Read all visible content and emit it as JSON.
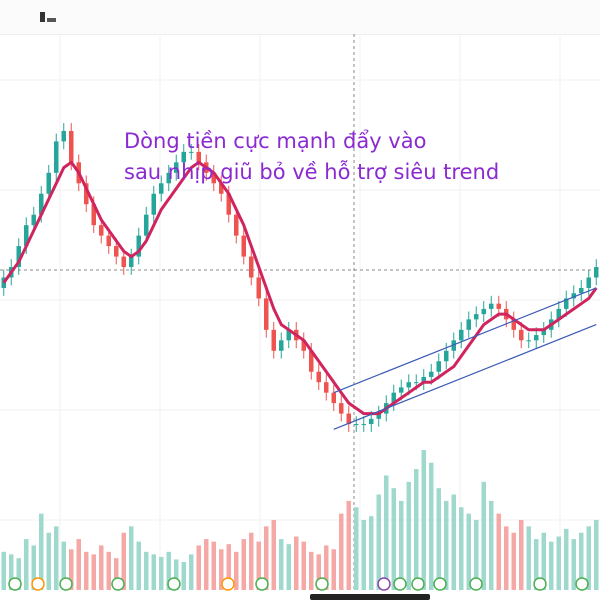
{
  "annotation": {
    "line1": "Dòng tiền cực mạnh đẩy vào",
    "line2": "sau nhịp giũ bỏ về hỗ trợ siêu trend"
  },
  "colors": {
    "up_candle": "#26a69a",
    "down_candle": "#ef5350",
    "up_volume": "#9fd8cd",
    "down_volume": "#f4a9a7",
    "moving_average": "#d0245e",
    "channel": "#3b5bb5",
    "annotation_text": "#8b2ad1",
    "event_marker": "#4caf50",
    "event_marker_alt": "#ff9800",
    "event_marker_div": "#8e44ad"
  },
  "icons": [
    "topbar-menu-icon"
  ],
  "chart_data": {
    "type": "candlestick",
    "grid": true,
    "candles": {
      "open": [
        60,
        62,
        64,
        68,
        72,
        74,
        78,
        82,
        88,
        90,
        84,
        80,
        76,
        72,
        70,
        68,
        66,
        64,
        66,
        70,
        74,
        78,
        80,
        82,
        84,
        86,
        86,
        84,
        82,
        80,
        78,
        74,
        70,
        66,
        62,
        58,
        52,
        48,
        50,
        52,
        50,
        48,
        44,
        42,
        40,
        38,
        36,
        34,
        34,
        34,
        35,
        36,
        38,
        40,
        41,
        42,
        42,
        43,
        44,
        46,
        48,
        50,
        52,
        54,
        55,
        56,
        57,
        56,
        54,
        52,
        50,
        50,
        51,
        52,
        54,
        56,
        58,
        59,
        60,
        62
      ],
      "close": [
        62,
        64,
        68,
        72,
        74,
        78,
        82,
        88,
        90,
        84,
        80,
        76,
        72,
        70,
        68,
        66,
        64,
        66,
        70,
        74,
        78,
        80,
        82,
        84,
        86,
        86,
        84,
        82,
        80,
        78,
        74,
        70,
        66,
        62,
        58,
        52,
        48,
        50,
        52,
        50,
        48,
        44,
        42,
        40,
        38,
        36,
        34,
        34,
        34,
        35,
        36,
        38,
        40,
        41,
        42,
        42,
        43,
        44,
        46,
        48,
        50,
        52,
        54,
        55,
        56,
        57,
        56,
        54,
        52,
        50,
        50,
        51,
        52,
        54,
        56,
        58,
        59,
        60,
        62,
        64
      ]
    },
    "moving_average": [
      61,
      63,
      65,
      68,
      71,
      74,
      77,
      80,
      83,
      84,
      82,
      79,
      76,
      73,
      71,
      69,
      67,
      66,
      67,
      69,
      72,
      75,
      77,
      79,
      81,
      83,
      84,
      83,
      82,
      80,
      78,
      75,
      72,
      68,
      64,
      60,
      56,
      53,
      52,
      51,
      50,
      48,
      46,
      44,
      42,
      40,
      38,
      37,
      36,
      36,
      36,
      37,
      38,
      39,
      40,
      41,
      42,
      42,
      43,
      44,
      45,
      47,
      49,
      51,
      53,
      54,
      55,
      55,
      54,
      53,
      52,
      52,
      52,
      53,
      54,
      55,
      56,
      57,
      58,
      60
    ],
    "volume": [
      30,
      28,
      25,
      40,
      35,
      60,
      45,
      50,
      38,
      32,
      40,
      30,
      28,
      35,
      30,
      25,
      45,
      50,
      38,
      30,
      28,
      26,
      30,
      24,
      22,
      28,
      35,
      40,
      38,
      32,
      36,
      30,
      40,
      45,
      38,
      50,
      55,
      40,
      36,
      42,
      38,
      30,
      28,
      35,
      32,
      60,
      70,
      65,
      55,
      58,
      75,
      90,
      80,
      70,
      85,
      95,
      110,
      100,
      80,
      70,
      75,
      65,
      60,
      55,
      85,
      70,
      60,
      50,
      45,
      55,
      50,
      40,
      45,
      38,
      42,
      48,
      40,
      45,
      50,
      55
    ],
    "channel": {
      "start_index": 44,
      "end_index": 79,
      "upper": [
        40,
        60
      ],
      "lower": [
        33,
        53
      ]
    }
  }
}
